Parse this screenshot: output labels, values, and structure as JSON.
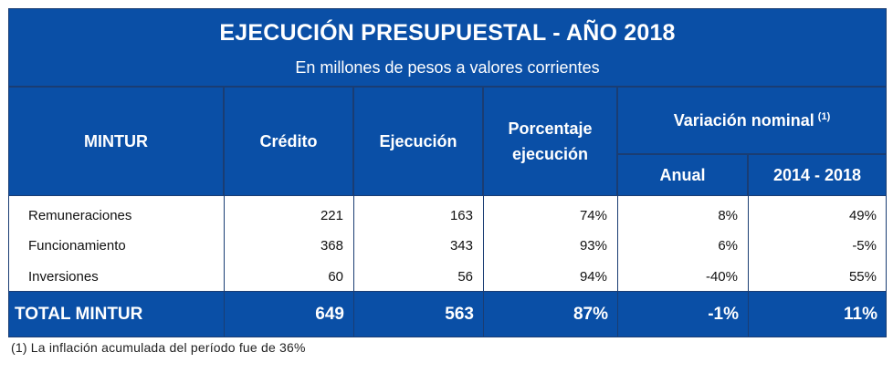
{
  "title": "EJECUCIÓN PRESUPUESTAL - AÑO 2018",
  "subtitle": "En millones de pesos a valores corrientes",
  "headers": {
    "entity": "MINTUR",
    "credit": "Crédito",
    "execution": "Ejecución",
    "percentage": "Porcentaje ejecución",
    "variation": "Variación nominal",
    "variation_note": "(1)",
    "annual": "Anual",
    "period": "2014 - 2018"
  },
  "rows": [
    {
      "label": "Remuneraciones",
      "credit": "221",
      "execution": "163",
      "percentage": "74%",
      "annual": "8%",
      "period": "49%"
    },
    {
      "label": "Funcionamiento",
      "credit": "368",
      "execution": "343",
      "percentage": "93%",
      "annual": "6%",
      "period": "-5%"
    },
    {
      "label": "Inversiones",
      "credit": "60",
      "execution": "56",
      "percentage": "94%",
      "annual": "-40%",
      "period": "55%"
    }
  ],
  "total": {
    "label": "TOTAL MINTUR",
    "credit": "649",
    "execution": "563",
    "percentage": "87%",
    "annual": "-1%",
    "period": "11%"
  },
  "footnote": "(1) La inflación acumulada del período fue de 36%",
  "colors": {
    "header_blue": "#0A4FA6"
  }
}
